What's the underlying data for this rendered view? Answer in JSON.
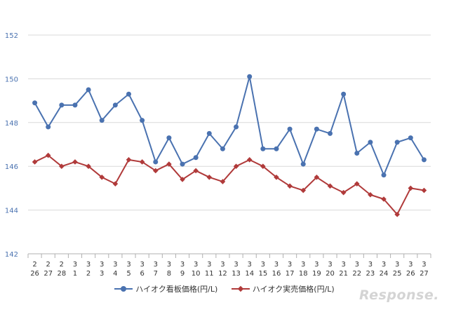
{
  "chart_data": {
    "type": "line",
    "categories": [
      [
        "2",
        "26"
      ],
      [
        "2",
        "27"
      ],
      [
        "2",
        "28"
      ],
      [
        "3",
        "1"
      ],
      [
        "3",
        "2"
      ],
      [
        "3",
        "3"
      ],
      [
        "3",
        "4"
      ],
      [
        "3",
        "5"
      ],
      [
        "3",
        "6"
      ],
      [
        "3",
        "7"
      ],
      [
        "3",
        "8"
      ],
      [
        "3",
        "9"
      ],
      [
        "3",
        "10"
      ],
      [
        "3",
        "11"
      ],
      [
        "3",
        "12"
      ],
      [
        "3",
        "13"
      ],
      [
        "3",
        "14"
      ],
      [
        "3",
        "15"
      ],
      [
        "3",
        "16"
      ],
      [
        "3",
        "17"
      ],
      [
        "3",
        "18"
      ],
      [
        "3",
        "19"
      ],
      [
        "3",
        "20"
      ],
      [
        "3",
        "21"
      ],
      [
        "3",
        "22"
      ],
      [
        "3",
        "23"
      ],
      [
        "3",
        "24"
      ],
      [
        "3",
        "25"
      ],
      [
        "3",
        "26"
      ],
      [
        "3",
        "27"
      ]
    ],
    "series": [
      {
        "name": "ハイオク看板価格(円/L)",
        "color": "#4a72b0",
        "marker": "circle",
        "values": [
          148.9,
          147.8,
          148.8,
          148.8,
          149.5,
          148.1,
          148.8,
          149.3,
          148.1,
          146.2,
          147.3,
          146.1,
          146.4,
          147.5,
          146.8,
          147.8,
          150.1,
          146.8,
          146.8,
          147.7,
          146.1,
          147.7,
          147.5,
          149.3,
          146.6,
          147.1,
          145.6,
          147.1,
          147.3,
          146.3
        ]
      },
      {
        "name": "ハイオク実売価格(円/L)",
        "color": "#b03a3a",
        "marker": "diamond",
        "values": [
          146.2,
          146.5,
          146.0,
          146.2,
          146.0,
          145.5,
          145.2,
          146.3,
          146.2,
          145.8,
          146.1,
          145.4,
          145.8,
          145.5,
          145.3,
          146.0,
          146.3,
          146.0,
          145.5,
          145.1,
          144.9,
          145.5,
          145.1,
          144.8,
          145.2,
          144.7,
          144.5,
          143.8,
          145.0,
          144.9
        ]
      }
    ],
    "ylim": [
      142,
      152
    ],
    "yticks": [
      "142",
      "144",
      "146",
      "148",
      "150",
      "152"
    ],
    "grid": true,
    "legend": "bottom"
  },
  "watermark": "Response."
}
